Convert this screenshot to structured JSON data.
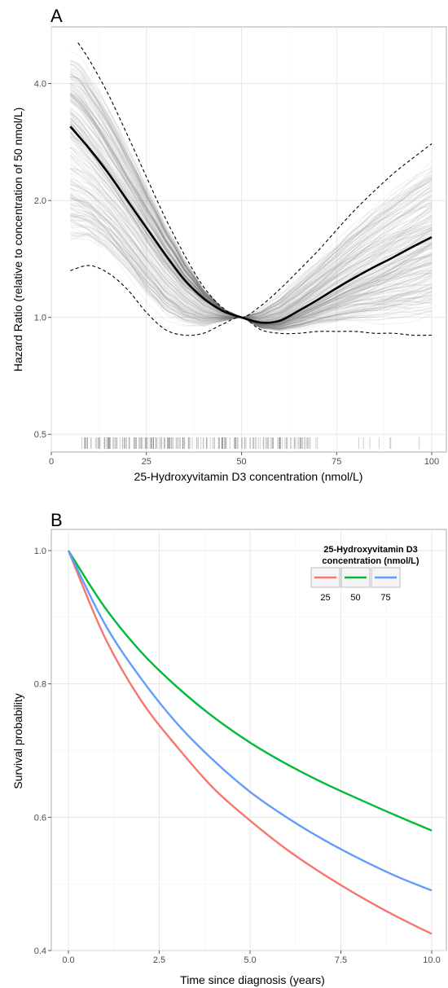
{
  "chart_data": [
    {
      "panel": "A",
      "type": "line",
      "xlabel": "25-Hydroxyvitamin D3 concentration (nmol/L)",
      "ylabel": "Hazard Ratio (relative to concentration of 50 nmol/L)",
      "xlim": [
        0,
        100
      ],
      "ylim": [
        0.45,
        5.6
      ],
      "y_scale": "log",
      "x_ticks": [
        "0",
        "25",
        "50",
        "75",
        "100"
      ],
      "y_ticks": [
        "0.5",
        "1.0",
        "2.0",
        "4.0"
      ],
      "grid": true,
      "series": [
        {
          "role": "estimate",
          "x": [
            5,
            10,
            15,
            20,
            25,
            30,
            35,
            40,
            45,
            50,
            55,
            60,
            65,
            70,
            75,
            80,
            85,
            90,
            95,
            100
          ],
          "y": [
            3.1,
            2.72,
            2.35,
            2.0,
            1.7,
            1.45,
            1.25,
            1.12,
            1.04,
            1.0,
            0.97,
            0.98,
            1.04,
            1.11,
            1.19,
            1.27,
            1.35,
            1.43,
            1.52,
            1.61
          ]
        },
        {
          "role": "upper bound",
          "x": [
            7,
            10,
            15,
            20,
            25,
            30,
            35,
            40,
            45,
            50,
            55,
            60,
            65,
            70,
            75,
            80,
            85,
            90,
            95,
            100
          ],
          "y": [
            5.1,
            4.6,
            3.75,
            2.95,
            2.3,
            1.8,
            1.45,
            1.2,
            1.06,
            1.0,
            1.07,
            1.18,
            1.32,
            1.48,
            1.68,
            1.9,
            2.12,
            2.35,
            2.57,
            2.8
          ]
        },
        {
          "role": "lower bound",
          "x": [
            5,
            10,
            15,
            20,
            25,
            30,
            35,
            40,
            45,
            50,
            55,
            60,
            65,
            70,
            75,
            80,
            85,
            90,
            95,
            100
          ],
          "y": [
            1.32,
            1.36,
            1.3,
            1.18,
            1.03,
            0.93,
            0.9,
            0.91,
            0.96,
            1.0,
            0.93,
            0.91,
            0.91,
            0.92,
            0.92,
            0.92,
            0.91,
            0.91,
            0.9,
            0.9
          ]
        }
      ],
      "rug": "observed concentrations (rug marks along x-axis)",
      "sample_lines": "bootstrap curves (grey)"
    },
    {
      "panel": "B",
      "type": "line",
      "xlabel": "Time since diagnosis (years)",
      "ylabel": "Survival probability",
      "xlim": [
        0,
        10
      ],
      "ylim": [
        0.4,
        1.0
      ],
      "x_ticks": [
        "0.0",
        "2.5",
        "5.0",
        "7.5",
        "10.0"
      ],
      "y_ticks": [
        "0.4",
        "0.6",
        "0.8",
        "1.0"
      ],
      "grid": true,
      "legend": {
        "title": "25-Hydroxyvitamin D3 concentration (nmol/L)",
        "title_lines": [
          "25-Hydroxyvitamin D3",
          "concentration (nmol/L)"
        ],
        "placement": "top-right"
      },
      "series": [
        {
          "name": "25",
          "color": "#F8766D",
          "x": [
            0,
            1,
            2,
            3,
            4,
            5,
            6,
            7,
            8,
            9,
            10
          ],
          "y": [
            1.0,
            0.87,
            0.775,
            0.705,
            0.643,
            0.595,
            0.552,
            0.515,
            0.482,
            0.452,
            0.425
          ]
        },
        {
          "name": "50",
          "color": "#00BA38",
          "x": [
            0,
            1,
            2,
            3,
            4,
            5,
            6,
            7,
            8,
            9,
            10
          ],
          "y": [
            1.0,
            0.915,
            0.848,
            0.795,
            0.75,
            0.712,
            0.68,
            0.652,
            0.627,
            0.603,
            0.58
          ]
        },
        {
          "name": "75",
          "color": "#619CFF",
          "x": [
            0,
            1,
            2,
            3,
            4,
            5,
            6,
            7,
            8,
            9,
            10
          ],
          "y": [
            1.0,
            0.89,
            0.808,
            0.74,
            0.685,
            0.638,
            0.6,
            0.567,
            0.538,
            0.512,
            0.49
          ]
        }
      ]
    }
  ]
}
